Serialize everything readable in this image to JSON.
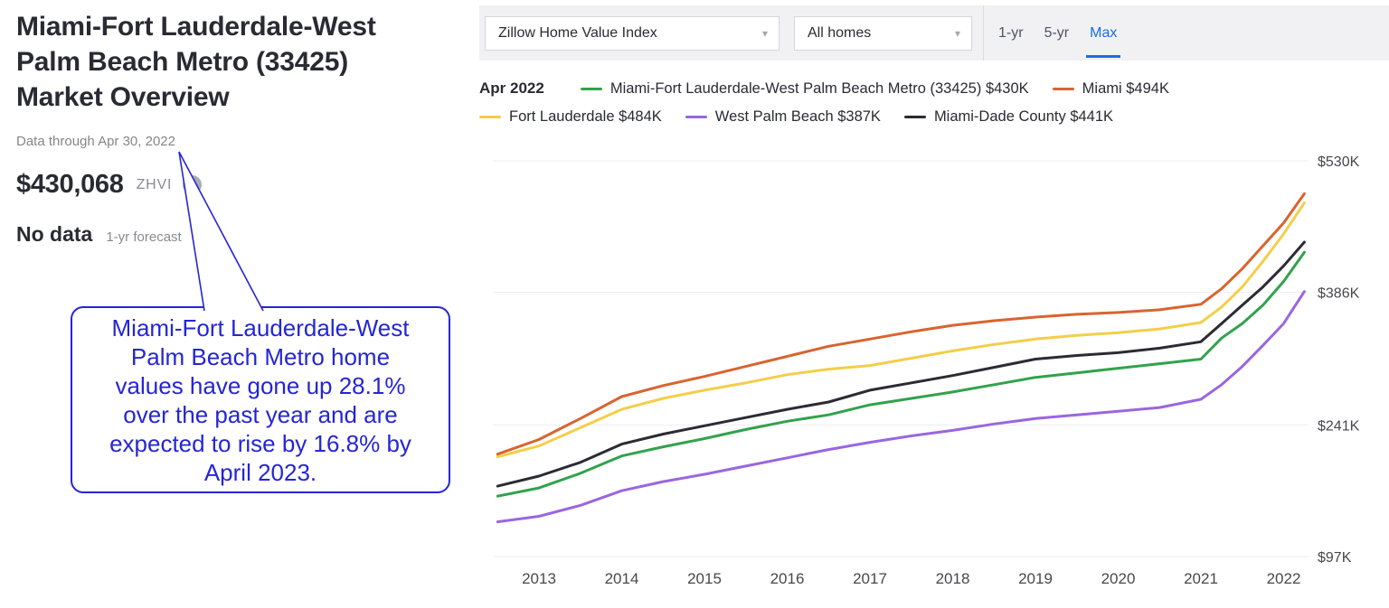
{
  "left_panel": {
    "title": "Miami-Fort Lauderdale-West\nPalm Beach Metro (33425)\nMarket Overview",
    "data_through": "Data through Apr 30, 2022",
    "zhvi_value": "$430,068",
    "zhvi_label": "ZHVI",
    "help_icon": "?",
    "forecast_value": "No data",
    "forecast_label": "1-yr forecast",
    "annotation": "Miami-Fort Lauderdale-West\nPalm Beach Metro home\nvalues have gone up 28.1%\nover the past year and are\nexpected to rise by 16.8% by\nApril 2023."
  },
  "controls": {
    "metric_dropdown": {
      "value": "Zillow Home Value Index"
    },
    "homes_dropdown": {
      "value": "All homes"
    },
    "range_tabs": [
      {
        "id": "1-yr",
        "label": "1-yr",
        "active": false
      },
      {
        "id": "5-yr",
        "label": "5-yr",
        "active": false
      },
      {
        "id": "max",
        "label": "Max",
        "active": true
      }
    ]
  },
  "legend": {
    "date": "Apr 2022",
    "items": [
      {
        "id": "metro",
        "label": "Miami-Fort Lauderdale-West Palm Beach Metro (33425)",
        "value": "$430K",
        "color": "#31A24C",
        "row": 1
      },
      {
        "id": "miami",
        "label": "Miami",
        "value": "$494K",
        "color": "#D9642F",
        "row": 1
      },
      {
        "id": "fort-lauderdale",
        "label": "Fort Lauderdale",
        "value": "$484K",
        "color": "#F3CE49",
        "row": 2
      },
      {
        "id": "west-palm-beach",
        "label": "West Palm Beach",
        "value": "$387K",
        "color": "#9A66E0",
        "row": 2
      },
      {
        "id": "miami-dade",
        "label": "Miami-Dade County",
        "value": "$441K",
        "color": "#2B2B33",
        "row": 2
      }
    ]
  },
  "colors": {
    "accent_blue": "#1670E0",
    "annotation_blue": "#2525D6",
    "text_dark": "#2A2A33",
    "text_gray": "#85858D",
    "gridline": "#EDEDF1",
    "control_bar_bg": "#F1F1F4"
  },
  "chart_data": {
    "type": "line",
    "legend_position": "top",
    "grid": true,
    "x_axis": {
      "ticks": [
        2013,
        2014,
        2015,
        2016,
        2017,
        2018,
        2019,
        2020,
        2021,
        2022
      ],
      "range": [
        2012.45,
        2022.4
      ]
    },
    "y_axis": {
      "tick_labels": [
        "$530K",
        "$386K",
        "$241K",
        "$97K"
      ],
      "tick_values": [
        530,
        386,
        241,
        97
      ],
      "unit": "thousand USD (ZHVI)"
    },
    "x": [
      2012.5,
      2013,
      2013.5,
      2014,
      2014.5,
      2015,
      2015.5,
      2016,
      2016.5,
      2017,
      2017.5,
      2018,
      2018.5,
      2019,
      2019.5,
      2020,
      2020.5,
      2021,
      2021.25,
      2021.5,
      2021.75,
      2022,
      2022.25
    ],
    "series": [
      {
        "id": "miami",
        "name": "Miami",
        "current": "$494K",
        "color": "#D9642F",
        "values": [
          209,
          225,
          248,
          272,
          284,
          294,
          305,
          316,
          327,
          335,
          343,
          350,
          355,
          359,
          362,
          364,
          367,
          373,
          390,
          412,
          437,
          462,
          494
        ]
      },
      {
        "id": "fort-lauderdale",
        "name": "Fort Lauderdale",
        "current": "$484K",
        "color": "#F3CE49",
        "values": [
          206,
          218,
          238,
          258,
          270,
          279,
          287,
          296,
          302,
          306,
          314,
          322,
          329,
          335,
          339,
          342,
          346,
          353,
          370,
          392,
          420,
          450,
          484
        ]
      },
      {
        "id": "miami-dade",
        "name": "Miami-Dade County",
        "current": "$441K",
        "color": "#2B2B33",
        "values": [
          174,
          185,
          200,
          220,
          231,
          240,
          249,
          258,
          266,
          279,
          287,
          295,
          304,
          313,
          317,
          320,
          325,
          332,
          352,
          372,
          392,
          415,
          441
        ]
      },
      {
        "id": "metro",
        "name": "Miami-Fort Lauderdale-West Palm Beach Metro (33425)",
        "current": "$430K",
        "color": "#31A24C",
        "values": [
          163,
          172,
          188,
          207,
          217,
          226,
          236,
          245,
          252,
          263,
          270,
          277,
          285,
          293,
          298,
          303,
          308,
          313,
          336,
          352,
          372,
          398,
          430
        ]
      },
      {
        "id": "west-palm-beach",
        "name": "West Palm Beach",
        "current": "$387K",
        "color": "#9A66E0",
        "values": [
          135,
          141,
          153,
          169,
          179,
          187,
          196,
          205,
          214,
          222,
          229,
          235,
          242,
          248,
          252,
          256,
          260,
          269,
          285,
          305,
          328,
          352,
          387
        ]
      }
    ]
  }
}
